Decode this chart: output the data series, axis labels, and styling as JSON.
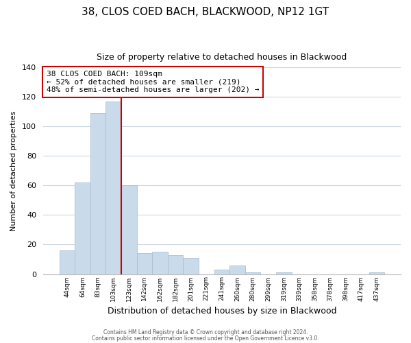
{
  "title": "38, CLOS COED BACH, BLACKWOOD, NP12 1GT",
  "subtitle": "Size of property relative to detached houses in Blackwood",
  "xlabel": "Distribution of detached houses by size in Blackwood",
  "ylabel": "Number of detached properties",
  "categories": [
    "44sqm",
    "64sqm",
    "83sqm",
    "103sqm",
    "123sqm",
    "142sqm",
    "162sqm",
    "182sqm",
    "201sqm",
    "221sqm",
    "241sqm",
    "260sqm",
    "280sqm",
    "299sqm",
    "319sqm",
    "339sqm",
    "358sqm",
    "378sqm",
    "398sqm",
    "417sqm",
    "437sqm"
  ],
  "values": [
    16,
    62,
    109,
    117,
    60,
    14,
    15,
    13,
    11,
    0,
    3,
    6,
    1,
    0,
    1,
    0,
    0,
    0,
    0,
    0,
    1
  ],
  "bar_color": "#c9daea",
  "bar_edge_color": "#aac0d4",
  "vline_x": 3.5,
  "vline_color": "#cc0000",
  "annotation_title": "38 CLOS COED BACH: 109sqm",
  "annotation_line1": "← 52% of detached houses are smaller (219)",
  "annotation_line2": "48% of semi-detached houses are larger (202) →",
  "annotation_box_color": "#ffffff",
  "annotation_box_edge": "#cc0000",
  "ylim": [
    0,
    140
  ],
  "yticks": [
    0,
    20,
    40,
    60,
    80,
    100,
    120,
    140
  ],
  "footer1": "Contains HM Land Registry data © Crown copyright and database right 2024.",
  "footer2": "Contains public sector information licensed under the Open Government Licence v3.0.",
  "background_color": "#ffffff",
  "grid_color": "#ccd8e4"
}
